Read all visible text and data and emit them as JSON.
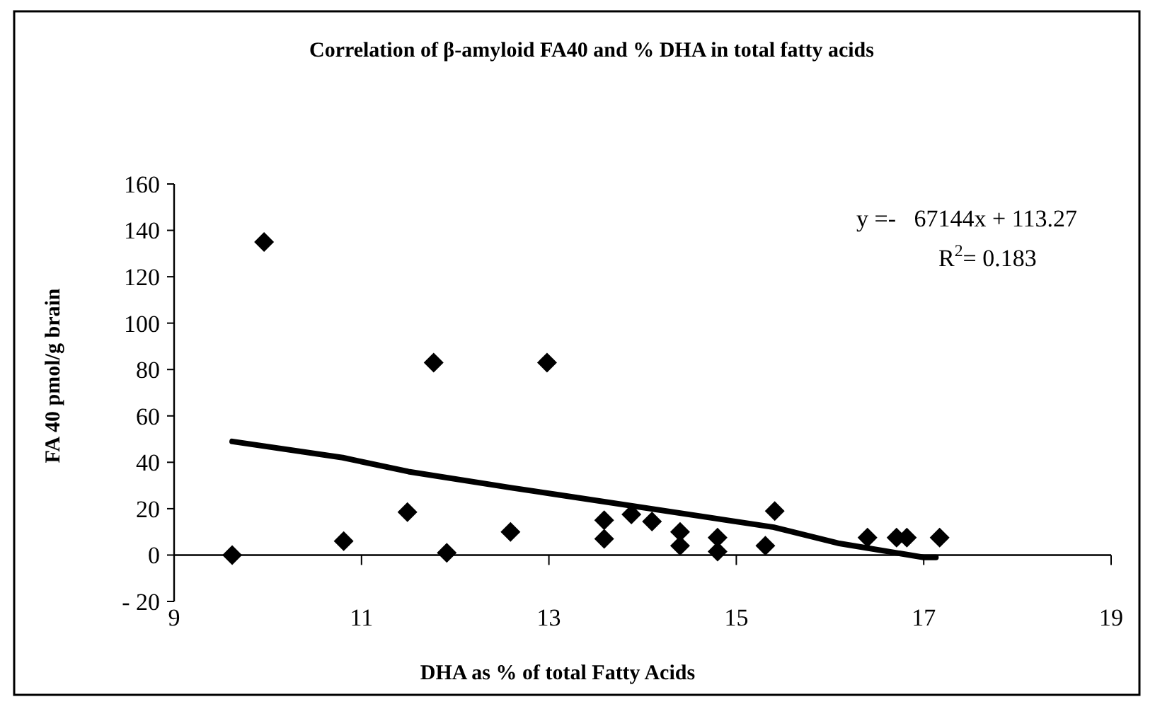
{
  "chart_data": {
    "type": "scatter",
    "title": "Correlation of β-amyloid FA40 and % DHA in total fatty acids",
    "xlabel": "DHA as % of total Fatty Acids",
    "ylabel": "FA 40 pmol/g brain",
    "xlim": [
      9,
      19
    ],
    "xticks": [
      9,
      11,
      13,
      15,
      17,
      19
    ],
    "ylim": [
      -20,
      160
    ],
    "yticks": [
      {
        "value": -20,
        "label": "- 20"
      },
      0,
      20,
      40,
      60,
      80,
      100,
      120,
      140,
      160
    ],
    "grid": false,
    "annotations": [
      "y =-   67144x + 113.27",
      "R$^{2}$= 0.183"
    ],
    "series": [
      {
        "marker": "diamond",
        "color": "#000000",
        "x": [
          9.62,
          9.96,
          10.81,
          11.49,
          11.77,
          11.91,
          12.59,
          12.98,
          13.59,
          13.59,
          13.88,
          14.1,
          14.4,
          14.4,
          14.8,
          14.8,
          15.31,
          15.41,
          16.4,
          16.71,
          16.82,
          17.17
        ],
        "values": [
          0,
          135,
          6,
          18.5,
          83,
          1,
          10,
          83,
          15,
          7,
          17.5,
          14.5,
          10,
          4,
          7.5,
          1.5,
          4,
          19,
          7.5,
          7.5,
          7.5,
          7.5
        ]
      },
      {
        "type": "line",
        "color": "#000000",
        "line_style": "solid",
        "marker": "none",
        "x": [
          9.62,
          10.8,
          11.5,
          12.6,
          13.1,
          15.4,
          16.1,
          17.0,
          17.13
        ],
        "values": [
          49,
          42,
          36,
          29,
          26,
          12,
          5,
          -1,
          -1
        ]
      }
    ]
  }
}
